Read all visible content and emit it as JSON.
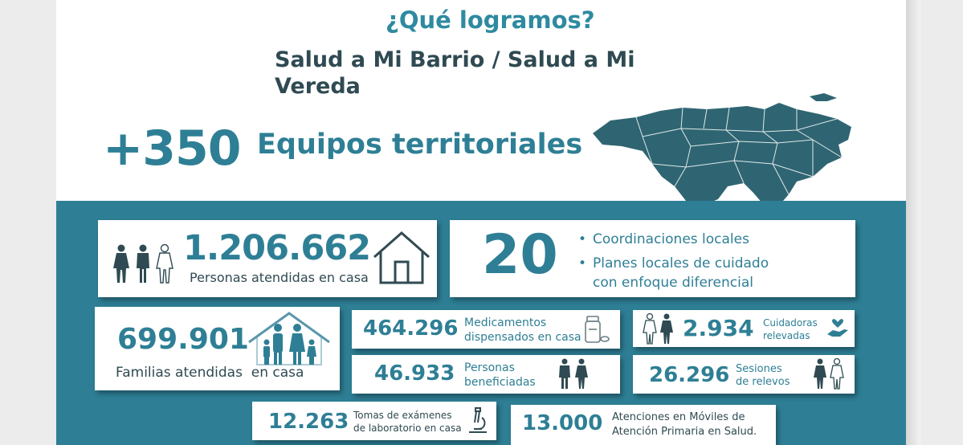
{
  "header": {
    "title": "¿Qué logramos?",
    "subtitle": "Salud a Mi Barrio / Salud a Mi Vereda",
    "teams_number": "+350",
    "teams_label": "Equipos territoriales"
  },
  "stats": {
    "personas": {
      "number": "1.206.662",
      "label": "Personas atendidas en casa"
    },
    "coordinaciones": {
      "number": "20",
      "item1": "Coordinaciones locales",
      "item2_line1": "Planes locales de cuidado",
      "item2_line2": "con enfoque diferencial"
    },
    "familias": {
      "number": "699.901",
      "label": "Familias atendidas  en casa"
    },
    "medicamentos": {
      "number": "464.296",
      "label_line1": "Medicamentos",
      "label_line2": "dispensados en casa"
    },
    "cuidadoras": {
      "number": "2.934",
      "label_line1": "Cuidadoras",
      "label_line2": "relevadas"
    },
    "beneficiadas": {
      "number": "46.933",
      "label_line1": "Personas",
      "label_line2": "beneficiadas"
    },
    "sesiones": {
      "number": "26.296",
      "label_line1": "Sesiones",
      "label_line2": "de relevos"
    },
    "examenes": {
      "number": "12.263",
      "label_line1": "Tomas de exámenes",
      "label_line2": "de laboratorio en casa"
    },
    "moviles": {
      "number": "13.000",
      "label_line1": "Atenciones en Móviles de",
      "label_line2": "Atención Primaria en Salud."
    }
  },
  "colors": {
    "accent": "#2e7f95",
    "dark": "#2f4a52",
    "map": "#2f6572"
  },
  "icons": [
    "people-icon",
    "house-icon",
    "family-house-icon",
    "medicine-icon",
    "women-icon",
    "heart-hand-icon",
    "couple-icon",
    "microscope-icon",
    "map-icon"
  ]
}
